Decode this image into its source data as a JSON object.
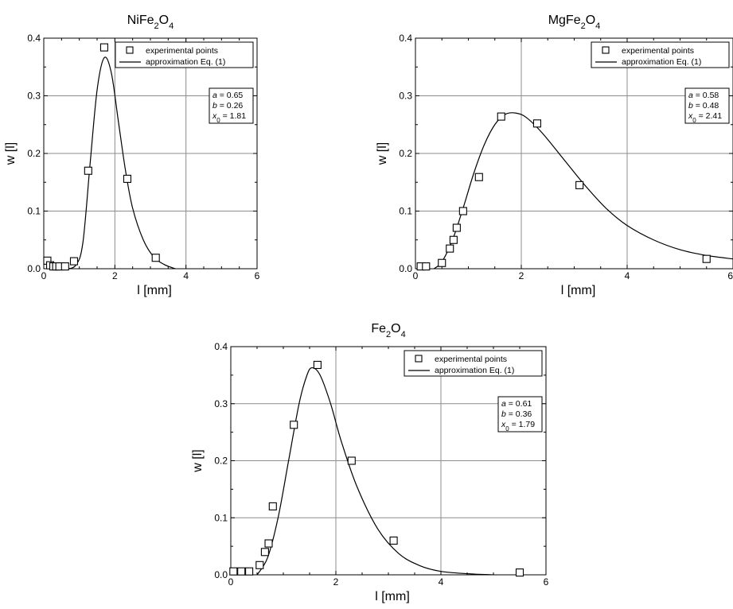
{
  "chart_data": [
    {
      "type": "scatter",
      "title": "NiFe₂O₄",
      "xlabel": "l [mm]",
      "ylabel": "w [l]",
      "xlim": [
        0,
        6
      ],
      "ylim": [
        0,
        0.4
      ],
      "xticks": [
        "0",
        "2",
        "4",
        "6"
      ],
      "yticks": [
        "0.0",
        "0.1",
        "0.2",
        "0.3",
        "0.4"
      ],
      "grid": true,
      "legend_position": "top-right",
      "legend": [
        "experimental points",
        "approximation Eq. (1)"
      ],
      "params": [
        "a = 0.65",
        "b = 0.26",
        "x0 = 1.81"
      ],
      "params_values": {
        "a": 0.65,
        "b": 0.26,
        "x0": 1.81
      },
      "series": [
        {
          "name": "experimental points",
          "kind": "markers",
          "x": [
            0.1,
            0.18,
            0.27,
            0.35,
            0.44,
            0.6,
            0.85,
            1.25,
            1.7,
            2.35,
            3.15
          ],
          "y": [
            0.014,
            0.006,
            0.004,
            0.004,
            0.004,
            0.004,
            0.013,
            0.17,
            0.384,
            0.156,
            0.019
          ]
        },
        {
          "name": "approximation Eq. (1)",
          "kind": "line",
          "x": [
            0.6,
            0.9,
            1.1,
            1.3,
            1.5,
            1.7,
            1.9,
            2.1,
            2.3,
            2.5,
            2.8,
            3.1,
            3.4,
            3.7
          ],
          "y": [
            0.0,
            0.006,
            0.045,
            0.18,
            0.31,
            0.366,
            0.34,
            0.255,
            0.17,
            0.105,
            0.05,
            0.02,
            0.007,
            0.0
          ]
        }
      ]
    },
    {
      "type": "scatter",
      "title": "MgFe₂O₄",
      "xlabel": "l [mm]",
      "ylabel": "w [l]",
      "xlim": [
        0,
        6
      ],
      "ylim": [
        0,
        0.4
      ],
      "xticks": [
        "0",
        "2",
        "4",
        "6"
      ],
      "yticks": [
        "0.0",
        "0.1",
        "0.2",
        "0.3",
        "0.4"
      ],
      "grid": true,
      "legend_position": "top-right",
      "legend": [
        "experimental points",
        "approximation Eq. (1)"
      ],
      "params": [
        "a = 0.58",
        "b = 0.48",
        "x0 = 2.41"
      ],
      "params_values": {
        "a": 0.58,
        "b": 0.48,
        "x0": 2.41
      },
      "series": [
        {
          "name": "experimental points",
          "kind": "markers",
          "x": [
            0.1,
            0.2,
            0.5,
            0.65,
            0.72,
            0.78,
            0.9,
            1.2,
            1.62,
            2.3,
            3.1,
            5.5
          ],
          "y": [
            0.004,
            0.004,
            0.01,
            0.035,
            0.05,
            0.071,
            0.1,
            0.159,
            0.264,
            0.252,
            0.145,
            0.017
          ]
        },
        {
          "name": "approximation Eq. (1)",
          "kind": "line",
          "x": [
            0.35,
            0.5,
            0.7,
            0.9,
            1.1,
            1.3,
            1.5,
            1.7,
            1.9,
            2.1,
            2.4,
            2.8,
            3.2,
            3.6,
            4.0,
            4.5,
            5.0,
            5.5,
            6.0
          ],
          "y": [
            0.0,
            0.012,
            0.05,
            0.105,
            0.165,
            0.215,
            0.25,
            0.268,
            0.27,
            0.262,
            0.235,
            0.19,
            0.145,
            0.105,
            0.075,
            0.05,
            0.033,
            0.023,
            0.017
          ]
        }
      ]
    },
    {
      "type": "scatter",
      "title": "Fe₂O₄",
      "xlabel": "l [mm]",
      "ylabel": "w [l]",
      "xlim": [
        0,
        6
      ],
      "ylim": [
        0,
        0.4
      ],
      "xticks": [
        "0",
        "2",
        "4",
        "6"
      ],
      "yticks": [
        "0.0",
        "0.1",
        "0.2",
        "0.3",
        "0.4"
      ],
      "grid": true,
      "legend_position": "top-right",
      "legend": [
        "experimental points",
        "approximation Eq. (1)"
      ],
      "params": [
        "a = 0.61",
        "b = 0.36",
        "x0 = 1.79"
      ],
      "params_values": {
        "a": 0.61,
        "b": 0.36,
        "x0": 1.79
      },
      "series": [
        {
          "name": "experimental points",
          "kind": "markers",
          "x": [
            0.05,
            0.2,
            0.35,
            0.55,
            0.65,
            0.72,
            0.8,
            1.2,
            1.65,
            2.3,
            3.1,
            5.5
          ],
          "y": [
            0.006,
            0.006,
            0.006,
            0.017,
            0.04,
            0.055,
            0.12,
            0.263,
            0.368,
            0.2,
            0.06,
            0.004
          ]
        },
        {
          "name": "approximation Eq. (1)",
          "kind": "line",
          "x": [
            0.5,
            0.7,
            0.9,
            1.1,
            1.3,
            1.45,
            1.55,
            1.7,
            1.9,
            2.1,
            2.4,
            2.8,
            3.2,
            3.6,
            4.0,
            4.5,
            5.0
          ],
          "y": [
            0.0,
            0.03,
            0.1,
            0.2,
            0.3,
            0.35,
            0.363,
            0.35,
            0.3,
            0.235,
            0.155,
            0.08,
            0.037,
            0.016,
            0.006,
            0.002,
            0.0
          ]
        }
      ]
    }
  ]
}
